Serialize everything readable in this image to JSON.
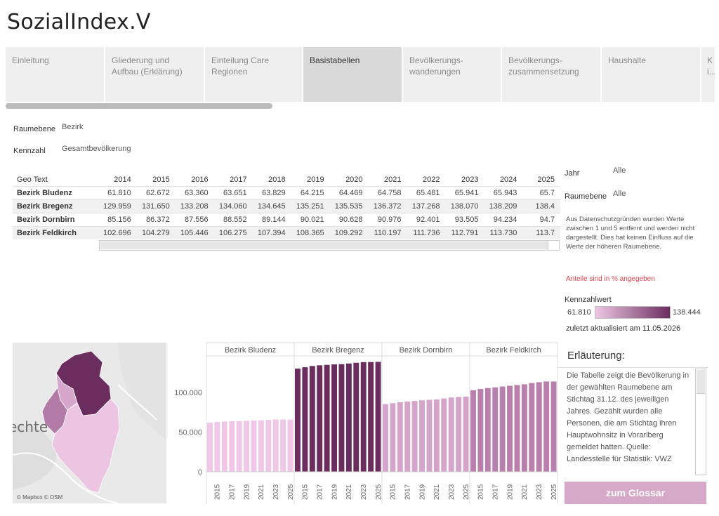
{
  "app": {
    "title": "SozialIndex.V"
  },
  "tabs": [
    {
      "label": "Einleitung",
      "active": false
    },
    {
      "label": "Gliederung und Aufbau (Erklärung)",
      "active": false
    },
    {
      "label": "Einteilung Care Regionen",
      "active": false
    },
    {
      "label": "Basistabellen",
      "active": true
    },
    {
      "label": "Bevölkerungs-wanderungen",
      "active": false
    },
    {
      "label": "Bevölkerungs-zusammensetzung",
      "active": false
    },
    {
      "label": "Haushalte",
      "active": false
    },
    {
      "label": "K le i...",
      "active": false
    }
  ],
  "filters": {
    "raumebene_label": "Raumebene",
    "raumebene_value": "Bezirk",
    "kennzahl_label": "Kennzahl",
    "kennzahl_value": "Gesamtbevölkerung"
  },
  "table": {
    "geo_header": "Geo Text",
    "years": [
      "2014",
      "2015",
      "2016",
      "2017",
      "2018",
      "2019",
      "2020",
      "2021",
      "2022",
      "2023",
      "2024",
      "2025"
    ],
    "rows": [
      {
        "name": "Bezirk Bludenz",
        "values": [
          "61.810",
          "62.672",
          "63.360",
          "63.651",
          "63.829",
          "64.215",
          "64.469",
          "64.758",
          "65.481",
          "65.941",
          "65.943",
          "65.7"
        ]
      },
      {
        "name": "Bezirk Bregenz",
        "values": [
          "129.959",
          "131.650",
          "133.208",
          "134.060",
          "134.645",
          "135.251",
          "135.535",
          "136.372",
          "137.268",
          "138.070",
          "138.209",
          "138.4"
        ]
      },
      {
        "name": "Bezirk Dornbirn",
        "values": [
          "85.156",
          "86.372",
          "87.556",
          "88.552",
          "89.144",
          "90.021",
          "90.628",
          "90.976",
          "92.401",
          "93.505",
          "94.234",
          "94.7"
        ]
      },
      {
        "name": "Bezirk Feldkirch",
        "values": [
          "102.696",
          "104.279",
          "105.446",
          "106.275",
          "107.394",
          "108.365",
          "109.292",
          "110.197",
          "111.736",
          "112.791",
          "113.730",
          "113.7"
        ]
      }
    ]
  },
  "side": {
    "jahr_label": "Jahr",
    "jahr_value": "Alle",
    "raumebene_label": "Raumebene",
    "raumebene_value": "Alle",
    "info_text": "Aus Datenschutzgründen wurden Werte zwischen 1 und 5 entfernt und werden nicht dargestellt. Dies hat keinen Einfluss auf die Werte der höheren Raumebene.",
    "shares_note": "Anteile sind in % angegeben",
    "legend_title": "Kennzahlwert",
    "legend_min": "61.810",
    "legend_max": "138.444",
    "updated": "zuletzt aktualisiert am 11.05.2026"
  },
  "map": {
    "credit": "© Mapbox © OSM",
    "label": "echte"
  },
  "explanation": {
    "title": "Erläuterung:",
    "text": "Die Tabelle zeigt die Bevölkerung in der gewählten Raumebene am Stichtag 31.12. des jeweiligen Jahres. Gezählt wurden alle Personen, die am Stichtag ihren Hauptwohnsitz in Vorarlberg gemeldet hatten. Quelle: Landesstelle für Statistik: VWZ",
    "button_label": "zum Glossar"
  },
  "chart_data": {
    "type": "bar",
    "panels": [
      "Bezirk Bludenz",
      "Bezirk Bregenz",
      "Bezirk Dornbirn",
      "Bezirk Feldkirch"
    ],
    "x": [
      2014,
      2015,
      2016,
      2017,
      2018,
      2019,
      2020,
      2021,
      2022,
      2023,
      2024,
      2025
    ],
    "x_tick_labels": [
      "2015",
      "2017",
      "2019",
      "2021",
      "2023",
      "2025"
    ],
    "series": [
      {
        "name": "Bezirk Bludenz",
        "color": "#f0c7e6",
        "values": [
          61810,
          62672,
          63360,
          63651,
          63829,
          64215,
          64469,
          64758,
          65481,
          65941,
          65943,
          65700
        ]
      },
      {
        "name": "Bezirk Bregenz",
        "color": "#6b2d5e",
        "values": [
          129959,
          131650,
          133208,
          134060,
          134645,
          135251,
          135535,
          136372,
          137268,
          138070,
          138209,
          138444
        ]
      },
      {
        "name": "Bezirk Dornbirn",
        "color": "#d5a4cb",
        "values": [
          85156,
          86372,
          87556,
          88552,
          89144,
          90021,
          90628,
          90976,
          92401,
          93505,
          94234,
          94700
        ]
      },
      {
        "name": "Bezirk Feldkirch",
        "color": "#ba80ad",
        "values": [
          102696,
          104279,
          105446,
          106275,
          107394,
          108365,
          109292,
          110197,
          111736,
          112791,
          113730,
          113700
        ]
      }
    ],
    "y_ticks": [
      "0",
      "50.000",
      "100.000"
    ],
    "ylim": [
      0,
      145000
    ]
  }
}
